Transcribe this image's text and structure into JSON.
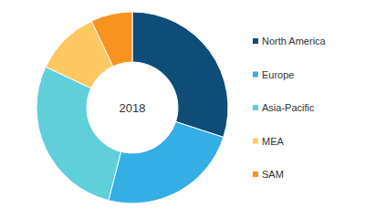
{
  "chart_data": {
    "type": "pie",
    "title": "2018",
    "categories": [
      "North America",
      "Europe",
      "Asia-Pacific",
      "MEA",
      "SAM"
    ],
    "values": [
      30,
      24,
      28,
      11,
      7
    ],
    "colors": [
      "#0d4d77",
      "#35aee6",
      "#5fcfd9",
      "#fdc862",
      "#f7931e"
    ],
    "legend": "right"
  }
}
